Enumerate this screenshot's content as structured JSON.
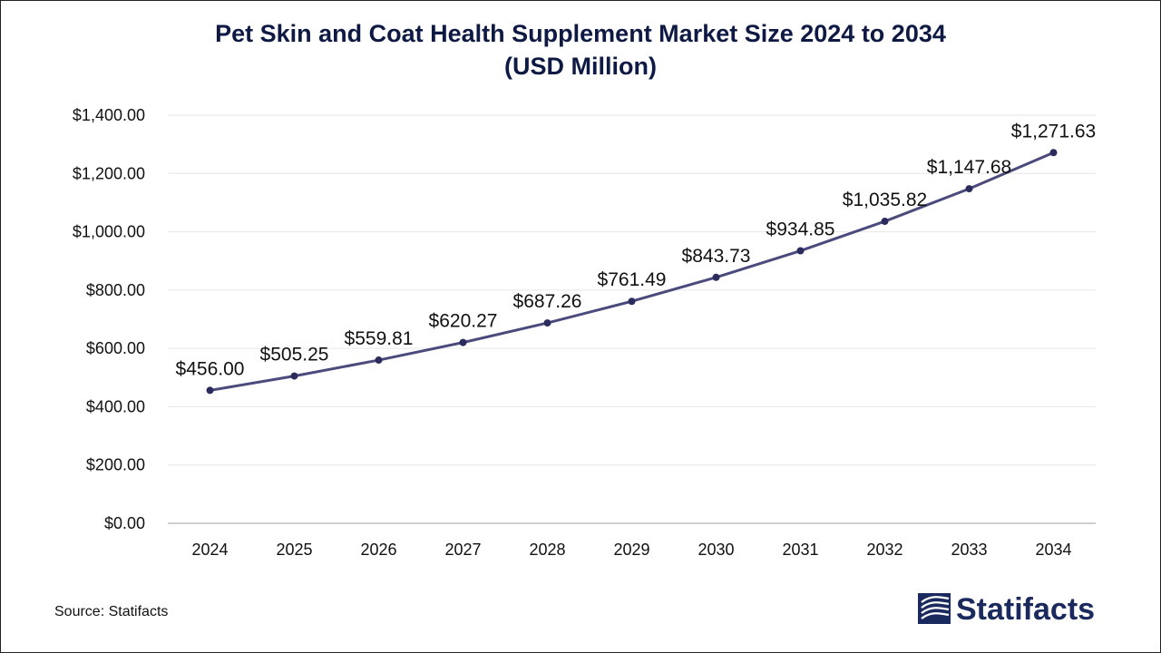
{
  "header": {
    "title_line1": "Pet Skin and Coat Health Supplement Market Size 2024 to 2034",
    "title_line2": "(USD Million)"
  },
  "footer": {
    "source": "Source: Statifacts",
    "logo_text": "Statifacts"
  },
  "colors": {
    "line": "#4a4a7c",
    "marker": "#2b2b5e",
    "grid": "#e6e6e6",
    "axis": "#bfbfbf",
    "title": "#0f1a44",
    "logo": "#1a2a5e"
  },
  "chart_data": {
    "type": "line",
    "title": "Pet Skin and Coat Health Supplement Market Size 2024 to 2034 (USD Million)",
    "xlabel": "",
    "ylabel": "",
    "categories": [
      "2024",
      "2025",
      "2026",
      "2027",
      "2028",
      "2029",
      "2030",
      "2031",
      "2032",
      "2033",
      "2034"
    ],
    "series": [
      {
        "values": [
          456.0,
          505.25,
          559.81,
          620.27,
          687.26,
          761.49,
          843.73,
          934.85,
          1035.82,
          1147.68,
          1271.63
        ],
        "data_labels": [
          "$456.00",
          "$505.25",
          "$559.81",
          "$620.27",
          "$687.26",
          "$761.49",
          "$843.73",
          "$934.85",
          "$1,035.82",
          "$1,147.68",
          "$1,271.63"
        ]
      }
    ],
    "ylim": [
      0,
      1400
    ],
    "yticks": [
      0,
      200,
      400,
      600,
      800,
      1000,
      1200,
      1400
    ],
    "ytick_labels": [
      "$0.00",
      "$200.00",
      "$400.00",
      "$600.00",
      "$800.00",
      "$1,000.00",
      "$1,200.00",
      "$1,400.00"
    ],
    "grid": true,
    "legend": "none"
  }
}
